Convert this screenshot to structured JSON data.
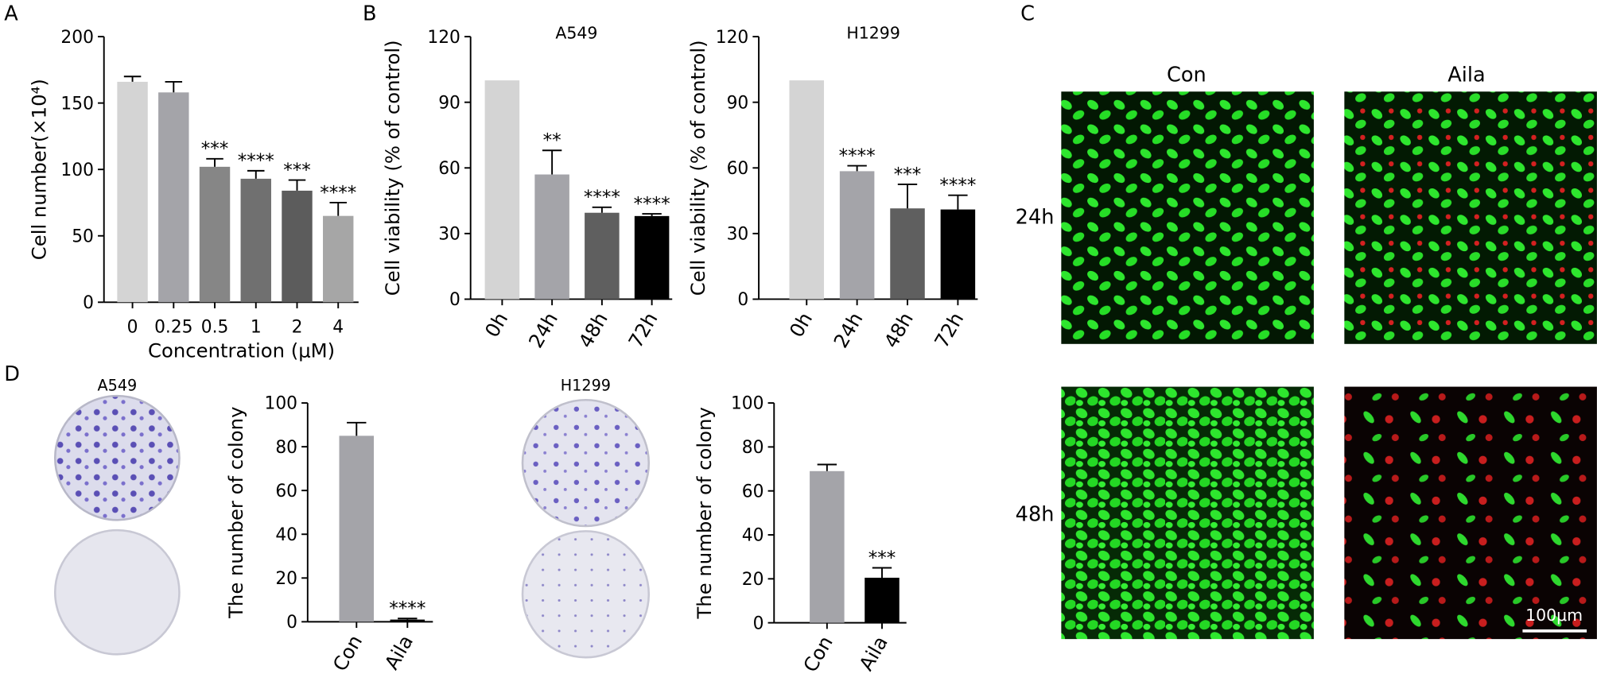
{
  "panel_labels": [
    "A",
    "B",
    "C",
    "D"
  ],
  "chart_data": [
    {
      "type": "bar",
      "ylabel": "Cell number(×10⁴)",
      "xlabel": "Concentration (μM)",
      "categories": [
        "0",
        "0.25",
        "0.5",
        "1",
        "2",
        "4"
      ],
      "values": [
        166,
        158,
        102,
        93,
        84,
        65
      ],
      "errors": [
        4,
        8,
        6,
        6,
        8,
        10
      ],
      "annotations": [
        null,
        null,
        "***",
        "****",
        "***",
        "****"
      ],
      "colors": [
        "#d4d4d4",
        "#a4a4a9",
        "#868686",
        "#707070",
        "#5c5c5c",
        "#a6a6a6"
      ],
      "ylim": [
        0,
        200
      ],
      "yticks": [
        0,
        50,
        100,
        150,
        200
      ]
    },
    {
      "type": "bar",
      "title": "A549",
      "ylabel": "Cell viability (% of control)",
      "categories": [
        "0h",
        "24h",
        "48h",
        "72h"
      ],
      "values": [
        100,
        57,
        39.5,
        38
      ],
      "errors": [
        null,
        11,
        2.5,
        1
      ],
      "annotations": [
        null,
        "**",
        "****",
        "****"
      ],
      "colors": [
        "#d4d4d4",
        "#a4a4a9",
        "#5f5f5f",
        "#000000"
      ],
      "ylim": [
        0,
        120
      ],
      "yticks": [
        0,
        30,
        60,
        90,
        120
      ]
    },
    {
      "type": "bar",
      "title": "H1299",
      "ylabel": "Cell viability (% of control)",
      "categories": [
        "0h",
        "24h",
        "48h",
        "72h"
      ],
      "values": [
        100,
        58.5,
        41.5,
        41
      ],
      "errors": [
        null,
        2.5,
        11,
        6.5
      ],
      "annotations": [
        null,
        "****",
        "***",
        "****"
      ],
      "colors": [
        "#d4d4d4",
        "#a4a4a9",
        "#5f5f5f",
        "#000000"
      ],
      "ylim": [
        0,
        120
      ],
      "yticks": [
        0,
        30,
        60,
        90,
        120
      ]
    },
    {
      "type": "bar",
      "ylabel": "The number of colony",
      "categories": [
        "Con",
        "Aila"
      ],
      "values": [
        85,
        1
      ],
      "errors": [
        6,
        0.5
      ],
      "annotations": [
        null,
        "****"
      ],
      "colors": [
        "#a4a4a9",
        "#000000"
      ],
      "ylim": [
        0,
        100
      ],
      "yticks": [
        0,
        20,
        40,
        60,
        80,
        100
      ]
    },
    {
      "type": "bar",
      "ylabel": "The number of colony",
      "categories": [
        "Con",
        "Aila"
      ],
      "values": [
        69,
        20.5
      ],
      "errors": [
        3,
        4.5
      ],
      "annotations": [
        null,
        "***"
      ],
      "colors": [
        "#a4a4a9",
        "#000000"
      ],
      "ylim": [
        0,
        100
      ],
      "yticks": [
        0,
        20,
        40,
        60,
        80,
        100
      ]
    }
  ],
  "plates": {
    "titles": [
      "A549",
      "H1299"
    ]
  },
  "micrographs": {
    "columns": [
      "Con",
      "Aila"
    ],
    "rows": [
      "24h",
      "48h"
    ],
    "scale_bar": "100μm"
  }
}
